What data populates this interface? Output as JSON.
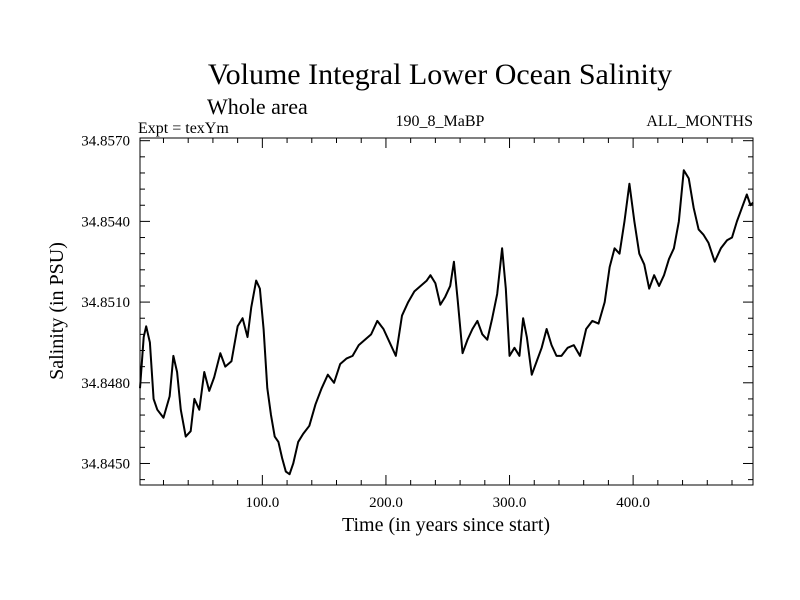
{
  "chart_data": {
    "type": "line",
    "title": "Volume Integral Lower Ocean Salinity",
    "subtitle": "Whole area",
    "left_label": "Expt = texYm",
    "center_label": "190_8_MaBP",
    "right_label": "ALL_MONTHS",
    "xlabel": "Time (in years since start)",
    "ylabel": "Salinity (in PSU)",
    "xlim": [
      1,
      497
    ],
    "ylim": [
      34.8442,
      34.8571
    ],
    "x_ticks": [
      100,
      200,
      300,
      400
    ],
    "x_tick_labels": [
      "100.0",
      "200.0",
      "300.0",
      "400.0"
    ],
    "y_ticks": [
      34.845,
      34.848,
      34.851,
      34.854,
      34.857
    ],
    "y_tick_labels": [
      "34.8450",
      "34.8480",
      "34.8510",
      "34.8540",
      "34.8570"
    ],
    "grid": false,
    "line_color": "#000000",
    "series": [
      {
        "x": [
          1,
          4,
          6,
          9,
          12,
          15,
          20,
          25,
          28,
          31,
          34,
          38,
          42,
          45,
          49,
          53,
          57,
          61,
          66,
          70,
          75,
          80,
          84,
          88,
          91,
          95,
          98,
          101,
          104,
          107,
          110,
          113,
          116,
          119,
          122,
          125,
          129,
          133,
          138,
          143,
          148,
          153,
          158,
          163,
          168,
          173,
          178,
          183,
          188,
          193,
          198,
          203,
          208,
          213,
          218,
          223,
          228,
          233,
          236,
          240,
          244,
          248,
          252,
          255,
          258,
          262,
          266,
          270,
          274,
          278,
          282,
          286,
          290,
          294,
          297,
          300,
          304,
          308,
          311,
          314,
          318,
          322,
          326,
          330,
          334,
          338,
          342,
          347,
          352,
          357,
          362,
          367,
          372,
          377,
          381,
          385,
          389,
          393,
          397,
          401,
          405,
          409,
          413,
          417,
          421,
          425,
          429,
          433,
          437,
          441,
          445,
          449,
          453,
          457,
          461,
          466,
          471,
          476,
          480,
          484,
          488,
          492,
          495,
          497
        ],
        "y": [
          34.8478,
          34.8497,
          34.8501,
          34.8495,
          34.8474,
          34.847,
          34.8467,
          34.8475,
          34.849,
          34.8484,
          34.847,
          34.846,
          34.8462,
          34.8474,
          34.847,
          34.8484,
          34.8477,
          34.8482,
          34.8491,
          34.8486,
          34.8488,
          34.8501,
          34.8504,
          34.8497,
          34.8508,
          34.8518,
          34.8515,
          34.85,
          34.8478,
          34.8468,
          34.846,
          34.8458,
          34.8452,
          34.8447,
          34.8446,
          34.845,
          34.8458,
          34.8461,
          34.8464,
          34.8472,
          34.8478,
          34.8483,
          34.848,
          34.8487,
          34.8489,
          34.849,
          34.8494,
          34.8496,
          34.8498,
          34.8503,
          34.85,
          34.8495,
          34.849,
          34.8505,
          34.851,
          34.8514,
          34.8516,
          34.8518,
          34.852,
          34.8517,
          34.8509,
          34.8512,
          34.8516,
          34.8525,
          34.8511,
          34.8491,
          34.8496,
          34.85,
          34.8503,
          34.8498,
          34.8496,
          34.8504,
          34.8513,
          34.853,
          34.8515,
          34.849,
          34.8493,
          34.849,
          34.8504,
          34.8497,
          34.8483,
          34.8488,
          34.8493,
          34.85,
          34.8494,
          34.849,
          34.849,
          34.8493,
          34.8494,
          34.849,
          34.85,
          34.8503,
          34.8502,
          34.851,
          34.8523,
          34.853,
          34.8528,
          34.854,
          34.8554,
          34.854,
          34.8528,
          34.8524,
          34.8515,
          34.852,
          34.8516,
          34.852,
          34.8526,
          34.853,
          34.854,
          34.8559,
          34.8556,
          34.8545,
          34.8537,
          34.8535,
          34.8532,
          34.8525,
          34.853,
          34.8533,
          34.8534,
          34.854,
          34.8545,
          34.855,
          34.8546,
          34.8547
        ]
      }
    ]
  }
}
